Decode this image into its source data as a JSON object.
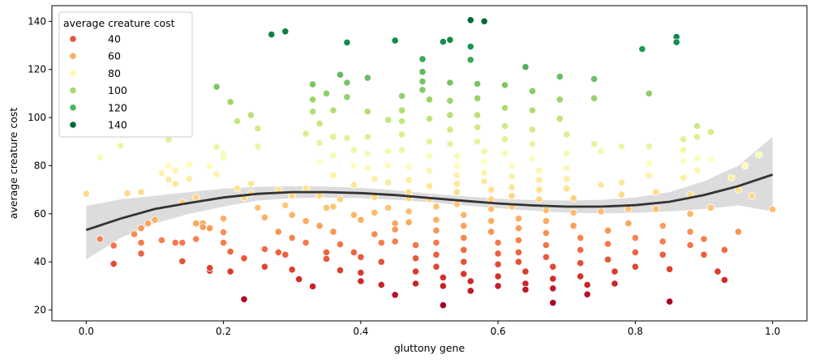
{
  "chart_data": {
    "type": "scatter",
    "xlabel": "gluttony gene",
    "ylabel": "average creature cost",
    "xlim": [
      -0.05,
      1.05
    ],
    "ylim": [
      15.5,
      146.5
    ],
    "x_ticks": [
      0.0,
      0.2,
      0.4,
      0.6,
      0.8,
      1.0
    ],
    "x_tick_labels": [
      "0.0",
      "0.2",
      "0.4",
      "0.6",
      "0.8",
      "1.0"
    ],
    "y_ticks": [
      20,
      40,
      60,
      80,
      100,
      120,
      140
    ],
    "y_tick_labels": [
      "20",
      "40",
      "60",
      "80",
      "100",
      "120",
      "140"
    ],
    "grid": false,
    "legend": {
      "title": "average creature cost",
      "placement": "top-left",
      "entries": [
        {
          "label": "40",
          "color": "#e0573b"
        },
        {
          "label": "60",
          "color": "#f8b062"
        },
        {
          "label": "80",
          "color": "#fcf6b0"
        },
        {
          "label": "100",
          "color": "#a9d86e"
        },
        {
          "label": "120",
          "color": "#4db65c"
        },
        {
          "label": "140",
          "color": "#006837"
        }
      ]
    },
    "colormap": {
      "name": "RdYlGn",
      "range": [
        22,
        141
      ],
      "stops": [
        [
          0.0,
          "#a50026"
        ],
        [
          0.1,
          "#d73027"
        ],
        [
          0.2,
          "#f46d43"
        ],
        [
          0.3,
          "#fdae61"
        ],
        [
          0.4,
          "#fee08b"
        ],
        [
          0.5,
          "#ffffbf"
        ],
        [
          0.6,
          "#d9ef8b"
        ],
        [
          0.7,
          "#a6d96a"
        ],
        [
          0.8,
          "#66bd63"
        ],
        [
          0.9,
          "#1a9850"
        ],
        [
          1.0,
          "#006837"
        ]
      ]
    },
    "trend": {
      "kind": "polynomial fit with confidence band",
      "color": "#333333",
      "band_color": "#dcdcdc",
      "points": [
        [
          0.0,
          53.3
        ],
        [
          0.05,
          58
        ],
        [
          0.1,
          62
        ],
        [
          0.15,
          64.5
        ],
        [
          0.2,
          66.8
        ],
        [
          0.25,
          68.3
        ],
        [
          0.3,
          69
        ],
        [
          0.35,
          69
        ],
        [
          0.4,
          68.6
        ],
        [
          0.45,
          67.8
        ],
        [
          0.5,
          66.6
        ],
        [
          0.55,
          65.4
        ],
        [
          0.6,
          64.3
        ],
        [
          0.65,
          63.5
        ],
        [
          0.7,
          63
        ],
        [
          0.75,
          63
        ],
        [
          0.8,
          63.6
        ],
        [
          0.85,
          65
        ],
        [
          0.9,
          67.8
        ],
        [
          0.95,
          71.5
        ],
        [
          1.0,
          76.3
        ]
      ],
      "lower": [
        [
          0.0,
          41
        ],
        [
          0.05,
          50
        ],
        [
          0.1,
          56
        ],
        [
          0.15,
          60
        ],
        [
          0.2,
          63
        ],
        [
          0.25,
          65.5
        ],
        [
          0.3,
          66.5
        ],
        [
          0.35,
          66.8
        ],
        [
          0.4,
          66.5
        ],
        [
          0.45,
          65.8
        ],
        [
          0.5,
          64.8
        ],
        [
          0.55,
          63.5
        ],
        [
          0.6,
          62.3
        ],
        [
          0.65,
          61.3
        ],
        [
          0.7,
          60.5
        ],
        [
          0.75,
          60.2
        ],
        [
          0.8,
          60.4
        ],
        [
          0.85,
          61
        ],
        [
          0.9,
          62
        ],
        [
          0.95,
          63.5
        ],
        [
          1.0,
          61
        ]
      ],
      "upper": [
        [
          0.0,
          63.3
        ],
        [
          0.05,
          66
        ],
        [
          0.1,
          67.5
        ],
        [
          0.15,
          69
        ],
        [
          0.2,
          70.5
        ],
        [
          0.25,
          71.2
        ],
        [
          0.3,
          71.5
        ],
        [
          0.35,
          71.3
        ],
        [
          0.4,
          70.8
        ],
        [
          0.45,
          69.8
        ],
        [
          0.5,
          68.4
        ],
        [
          0.55,
          67.3
        ],
        [
          0.6,
          66.3
        ],
        [
          0.65,
          65.7
        ],
        [
          0.7,
          65.5
        ],
        [
          0.75,
          65.8
        ],
        [
          0.8,
          66.8
        ],
        [
          0.85,
          69
        ],
        [
          0.9,
          73.5
        ],
        [
          0.95,
          80
        ],
        [
          1.0,
          92
        ]
      ]
    },
    "points": [
      [
        0.0,
        68.3
      ],
      [
        0.02,
        83.5
      ],
      [
        0.02,
        49.5
      ],
      [
        0.04,
        39.2
      ],
      [
        0.04,
        46.8
      ],
      [
        0.05,
        88.2
      ],
      [
        0.06,
        68.5
      ],
      [
        0.07,
        51.5
      ],
      [
        0.08,
        69
      ],
      [
        0.08,
        54
      ],
      [
        0.08,
        48
      ],
      [
        0.08,
        43.5
      ],
      [
        0.09,
        56
      ],
      [
        0.1,
        57.5
      ],
      [
        0.11,
        77
      ],
      [
        0.11,
        49
      ],
      [
        0.12,
        90.8
      ],
      [
        0.12,
        80
      ],
      [
        0.12,
        74.2
      ],
      [
        0.13,
        48
      ],
      [
        0.13,
        78
      ],
      [
        0.13,
        72.5
      ],
      [
        0.14,
        64.8
      ],
      [
        0.14,
        48
      ],
      [
        0.14,
        40.3
      ],
      [
        0.15,
        80.5
      ],
      [
        0.15,
        74.5
      ],
      [
        0.16,
        66.8
      ],
      [
        0.16,
        56
      ],
      [
        0.16,
        49.5
      ],
      [
        0.17,
        56
      ],
      [
        0.17,
        54.5
      ],
      [
        0.18,
        54
      ],
      [
        0.18,
        36.3
      ],
      [
        0.18,
        37.5
      ],
      [
        0.18,
        79.8
      ],
      [
        0.19,
        87.8
      ],
      [
        0.19,
        76.5
      ],
      [
        0.19,
        112.8
      ],
      [
        0.2,
        85
      ],
      [
        0.2,
        83.2
      ],
      [
        0.2,
        58
      ],
      [
        0.2,
        52.3
      ],
      [
        0.2,
        48
      ],
      [
        0.21,
        44.3
      ],
      [
        0.21,
        36
      ],
      [
        0.21,
        106.5
      ],
      [
        0.22,
        98.5
      ],
      [
        0.22,
        70.5
      ],
      [
        0.23,
        66.8
      ],
      [
        0.23,
        41.5
      ],
      [
        0.23,
        24.5
      ],
      [
        0.24,
        72.5
      ],
      [
        0.24,
        68.5
      ],
      [
        0.24,
        101
      ],
      [
        0.25,
        95.5
      ],
      [
        0.25,
        88
      ],
      [
        0.25,
        62.5
      ],
      [
        0.26,
        58.5
      ],
      [
        0.26,
        45.3
      ],
      [
        0.26,
        38
      ],
      [
        0.27,
        134.5
      ],
      [
        0.28,
        70
      ],
      [
        0.28,
        52.5
      ],
      [
        0.28,
        44
      ],
      [
        0.29,
        135.8
      ],
      [
        0.29,
        63.5
      ],
      [
        0.29,
        43
      ],
      [
        0.3,
        67.5
      ],
      [
        0.3,
        59.5
      ],
      [
        0.3,
        50
      ],
      [
        0.3,
        36.8
      ],
      [
        0.31,
        32.8
      ],
      [
        0.32,
        93.3
      ],
      [
        0.32,
        70.5
      ],
      [
        0.32,
        57
      ],
      [
        0.32,
        48
      ],
      [
        0.33,
        29.8
      ],
      [
        0.33,
        102.5
      ],
      [
        0.33,
        107.5
      ],
      [
        0.33,
        113.8
      ],
      [
        0.34,
        97.5
      ],
      [
        0.34,
        89.5
      ],
      [
        0.34,
        81.5
      ],
      [
        0.34,
        67.5
      ],
      [
        0.34,
        55
      ],
      [
        0.35,
        62.5
      ],
      [
        0.35,
        44
      ],
      [
        0.35,
        41.3
      ],
      [
        0.35,
        110
      ],
      [
        0.36,
        103
      ],
      [
        0.36,
        92
      ],
      [
        0.36,
        84.3
      ],
      [
        0.36,
        76
      ],
      [
        0.36,
        63
      ],
      [
        0.36,
        52.5
      ],
      [
        0.37,
        66
      ],
      [
        0.37,
        47.3
      ],
      [
        0.37,
        36.5
      ],
      [
        0.37,
        117.8
      ],
      [
        0.38,
        114.5
      ],
      [
        0.38,
        108.5
      ],
      [
        0.38,
        131.2
      ],
      [
        0.38,
        91.5
      ],
      [
        0.39,
        86.5
      ],
      [
        0.39,
        80
      ],
      [
        0.39,
        72
      ],
      [
        0.39,
        59.5
      ],
      [
        0.39,
        44
      ],
      [
        0.4,
        57.5
      ],
      [
        0.4,
        42
      ],
      [
        0.4,
        35.5
      ],
      [
        0.4,
        32
      ],
      [
        0.41,
        116.5
      ],
      [
        0.41,
        102.5
      ],
      [
        0.41,
        92
      ],
      [
        0.41,
        85
      ],
      [
        0.41,
        79
      ],
      [
        0.42,
        74.5
      ],
      [
        0.42,
        67
      ],
      [
        0.42,
        60.5
      ],
      [
        0.42,
        51.5
      ],
      [
        0.43,
        48
      ],
      [
        0.43,
        40
      ],
      [
        0.43,
        30.5
      ],
      [
        0.44,
        99
      ],
      [
        0.44,
        86
      ],
      [
        0.44,
        80
      ],
      [
        0.44,
        73
      ],
      [
        0.44,
        62.5
      ],
      [
        0.45,
        56
      ],
      [
        0.45,
        53.5
      ],
      [
        0.45,
        48.5
      ],
      [
        0.45,
        26.3
      ],
      [
        0.45,
        132
      ],
      [
        0.46,
        109
      ],
      [
        0.46,
        103
      ],
      [
        0.46,
        98.5
      ],
      [
        0.46,
        93
      ],
      [
        0.46,
        86.5
      ],
      [
        0.47,
        79.5
      ],
      [
        0.47,
        74
      ],
      [
        0.47,
        69
      ],
      [
        0.47,
        66.5
      ],
      [
        0.47,
        61
      ],
      [
        0.47,
        56.5
      ],
      [
        0.48,
        47
      ],
      [
        0.48,
        41.5
      ],
      [
        0.48,
        36
      ],
      [
        0.48,
        31
      ],
      [
        0.49,
        115
      ],
      [
        0.49,
        119
      ],
      [
        0.49,
        124.3
      ],
      [
        0.49,
        111.5
      ],
      [
        0.5,
        107.5
      ],
      [
        0.5,
        99.5
      ],
      [
        0.5,
        90
      ],
      [
        0.5,
        84
      ],
      [
        0.5,
        78
      ],
      [
        0.5,
        71.5
      ],
      [
        0.5,
        66
      ],
      [
        0.51,
        63
      ],
      [
        0.51,
        57.5
      ],
      [
        0.51,
        53
      ],
      [
        0.51,
        48
      ],
      [
        0.51,
        43
      ],
      [
        0.51,
        38
      ],
      [
        0.52,
        33.5
      ],
      [
        0.52,
        30
      ],
      [
        0.52,
        22
      ],
      [
        0.52,
        131.5
      ],
      [
        0.53,
        132.3
      ],
      [
        0.53,
        114.5
      ],
      [
        0.53,
        107
      ],
      [
        0.53,
        101
      ],
      [
        0.53,
        95
      ],
      [
        0.53,
        89
      ],
      [
        0.54,
        84
      ],
      [
        0.54,
        80
      ],
      [
        0.54,
        76
      ],
      [
        0.54,
        72.5
      ],
      [
        0.54,
        69
      ],
      [
        0.54,
        64
      ],
      [
        0.55,
        59.5
      ],
      [
        0.55,
        55
      ],
      [
        0.55,
        50
      ],
      [
        0.55,
        45
      ],
      [
        0.55,
        40
      ],
      [
        0.55,
        35
      ],
      [
        0.56,
        32
      ],
      [
        0.56,
        28
      ],
      [
        0.56,
        140.5
      ],
      [
        0.56,
        129.5
      ],
      [
        0.56,
        124
      ],
      [
        0.57,
        114
      ],
      [
        0.57,
        108
      ],
      [
        0.57,
        101
      ],
      [
        0.57,
        96
      ],
      [
        0.57,
        90
      ],
      [
        0.58,
        140
      ],
      [
        0.58,
        86
      ],
      [
        0.58,
        81.5
      ],
      [
        0.58,
        77
      ],
      [
        0.58,
        73.5
      ],
      [
        0.59,
        70
      ],
      [
        0.59,
        66
      ],
      [
        0.59,
        62
      ],
      [
        0.59,
        57
      ],
      [
        0.59,
        52.5
      ],
      [
        0.6,
        48
      ],
      [
        0.6,
        43.5
      ],
      [
        0.6,
        39
      ],
      [
        0.6,
        34
      ],
      [
        0.6,
        30
      ],
      [
        0.61,
        113.5
      ],
      [
        0.61,
        104
      ],
      [
        0.61,
        96.5
      ],
      [
        0.61,
        91
      ],
      [
        0.61,
        85
      ],
      [
        0.62,
        80
      ],
      [
        0.62,
        75.5
      ],
      [
        0.62,
        71
      ],
      [
        0.62,
        67.5
      ],
      [
        0.62,
        63
      ],
      [
        0.63,
        58
      ],
      [
        0.63,
        54
      ],
      [
        0.63,
        49
      ],
      [
        0.63,
        44
      ],
      [
        0.63,
        40
      ],
      [
        0.64,
        36
      ],
      [
        0.64,
        31
      ],
      [
        0.64,
        28.5
      ],
      [
        0.64,
        121
      ],
      [
        0.65,
        111
      ],
      [
        0.65,
        103
      ],
      [
        0.65,
        95
      ],
      [
        0.65,
        89
      ],
      [
        0.65,
        83
      ],
      [
        0.66,
        78
      ],
      [
        0.66,
        74
      ],
      [
        0.66,
        70
      ],
      [
        0.66,
        66
      ],
      [
        0.67,
        61.5
      ],
      [
        0.67,
        57
      ],
      [
        0.67,
        52
      ],
      [
        0.67,
        47
      ],
      [
        0.67,
        42
      ],
      [
        0.68,
        38
      ],
      [
        0.68,
        33
      ],
      [
        0.68,
        29
      ],
      [
        0.68,
        23
      ],
      [
        0.69,
        117
      ],
      [
        0.69,
        107.5
      ],
      [
        0.69,
        99.5
      ],
      [
        0.7,
        93
      ],
      [
        0.7,
        85
      ],
      [
        0.7,
        79
      ],
      [
        0.7,
        74.5
      ],
      [
        0.7,
        70.5
      ],
      [
        0.71,
        66.5
      ],
      [
        0.71,
        60.5
      ],
      [
        0.71,
        55
      ],
      [
        0.72,
        50
      ],
      [
        0.72,
        45
      ],
      [
        0.72,
        39.5
      ],
      [
        0.72,
        34
      ],
      [
        0.73,
        30.5
      ],
      [
        0.73,
        26.5
      ],
      [
        0.74,
        116
      ],
      [
        0.74,
        108
      ],
      [
        0.74,
        89
      ],
      [
        0.75,
        86
      ],
      [
        0.75,
        72
      ],
      [
        0.75,
        61
      ],
      [
        0.76,
        53
      ],
      [
        0.76,
        47.5
      ],
      [
        0.76,
        41
      ],
      [
        0.77,
        36
      ],
      [
        0.77,
        31
      ],
      [
        0.78,
        88
      ],
      [
        0.78,
        73
      ],
      [
        0.78,
        68
      ],
      [
        0.79,
        62
      ],
      [
        0.79,
        56
      ],
      [
        0.8,
        50
      ],
      [
        0.8,
        44
      ],
      [
        0.8,
        38
      ],
      [
        0.81,
        128.5
      ],
      [
        0.82,
        110
      ],
      [
        0.82,
        88
      ],
      [
        0.82,
        81
      ],
      [
        0.82,
        76
      ],
      [
        0.83,
        69
      ],
      [
        0.83,
        62
      ],
      [
        0.84,
        55
      ],
      [
        0.84,
        48.5
      ],
      [
        0.84,
        43
      ],
      [
        0.85,
        37
      ],
      [
        0.85,
        23.5
      ],
      [
        0.86,
        133.5
      ],
      [
        0.86,
        131.3
      ],
      [
        0.87,
        91
      ],
      [
        0.87,
        86.5
      ],
      [
        0.87,
        82
      ],
      [
        0.87,
        75
      ],
      [
        0.88,
        68
      ],
      [
        0.88,
        60
      ],
      [
        0.88,
        52.5
      ],
      [
        0.88,
        47
      ],
      [
        0.89,
        96.5
      ],
      [
        0.89,
        92
      ],
      [
        0.89,
        83
      ],
      [
        0.89,
        78
      ],
      [
        0.9,
        49.5
      ],
      [
        0.9,
        43
      ],
      [
        0.91,
        94
      ],
      [
        0.91,
        82.5
      ],
      [
        0.91,
        62.5
      ],
      [
        0.92,
        36
      ],
      [
        0.93,
        32.5
      ],
      [
        0.93,
        45
      ],
      [
        0.94,
        75
      ],
      [
        0.95,
        70
      ],
      [
        0.95,
        52.5
      ],
      [
        0.96,
        80
      ],
      [
        0.97,
        67.5
      ],
      [
        0.98,
        84.5
      ],
      [
        1.0,
        61.8
      ]
    ]
  }
}
